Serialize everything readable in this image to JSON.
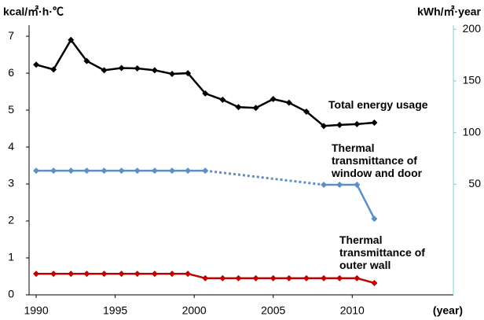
{
  "chart_data": {
    "type": "line",
    "y_label": "kcal/㎡·h·℃",
    "y2_label": "kWh/㎡·year",
    "x_label": "(year)",
    "x": [
      1990,
      1991.1,
      1992.2,
      1993.2,
      1994.3,
      1995.4,
      1996.4,
      1997.5,
      1998.6,
      1999.6,
      2000.7,
      2001.8,
      2002.8,
      2003.9,
      2005,
      2006,
      2007.1,
      2008.2,
      2009.2,
      2010.3,
      2011.4
    ],
    "xlim": [
      1989.55,
      2016.4
    ],
    "xticks": [
      1990,
      1995,
      2000,
      2005,
      2010
    ],
    "ylim": [
      0,
      7.3
    ],
    "yticks": [
      0,
      1,
      2,
      3,
      4,
      5,
      6,
      7
    ],
    "y2lim": [
      -57,
      204
    ],
    "y2ticks": [
      50,
      100,
      150,
      200
    ],
    "series": [
      {
        "name": "Total energy usage",
        "color": "#000000",
        "values": [
          6.23,
          6.1,
          6.9,
          6.33,
          6.08,
          6.14,
          6.13,
          6.08,
          5.98,
          6.0,
          5.45,
          5.28,
          5.08,
          5.06,
          5.3,
          5.2,
          4.96,
          4.57,
          4.6,
          4.62,
          4.66
        ]
      },
      {
        "name": "Thermal transmittance of window and door",
        "color": "#5b8fc7",
        "gap_style": "dotted",
        "values": [
          3.36,
          3.36,
          3.36,
          3.36,
          3.36,
          3.36,
          3.36,
          3.36,
          3.36,
          3.36,
          3.36,
          null,
          null,
          null,
          null,
          null,
          null,
          2.98,
          2.98,
          2.98,
          2.06
        ]
      },
      {
        "name": "Thermal transmittance of outer wall",
        "color": "#c00000",
        "values": [
          0.57,
          0.57,
          0.57,
          0.57,
          0.57,
          0.57,
          0.57,
          0.57,
          0.57,
          0.57,
          0.45,
          0.45,
          0.45,
          0.45,
          0.45,
          0.45,
          0.45,
          0.45,
          0.45,
          0.45,
          0.32
        ]
      }
    ]
  }
}
